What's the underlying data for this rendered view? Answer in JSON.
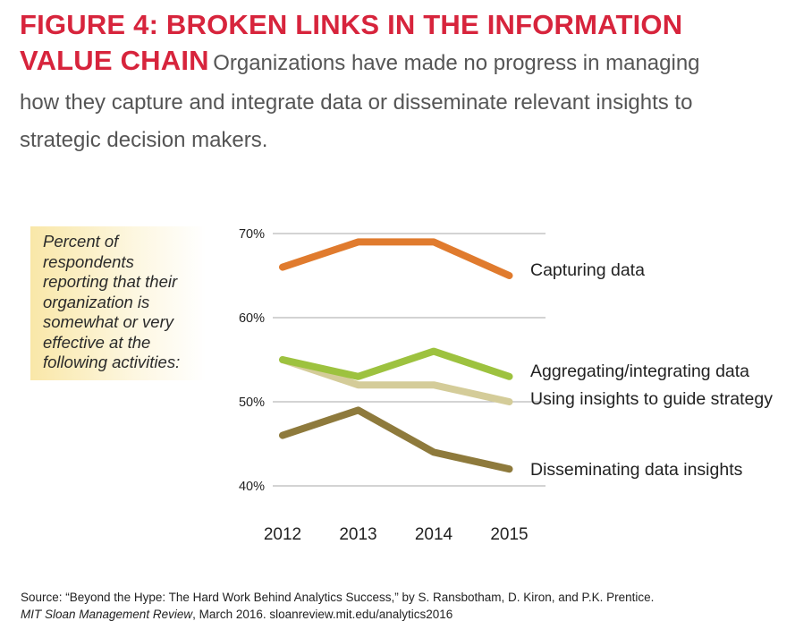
{
  "header": {
    "title_line1": "FIGURE 4: BROKEN LINKS IN THE INFORMATION",
    "title_line2": "VALUE CHAIN",
    "subtitle_line1": "Organizations have made no progress in managing",
    "subtitle_line2": "how they capture and integrate data or disseminate relevant insights to",
    "subtitle_line3": "strategic decision makers."
  },
  "callout": {
    "text": "Percent of respondents reporting that their organization is somewhat or very effective at the following activities:"
  },
  "chart_data": {
    "type": "line",
    "title": "FIGURE 4: BROKEN LINKS IN THE INFORMATION VALUE CHAIN",
    "xlabel": "",
    "ylabel": "",
    "x": [
      "2012",
      "2013",
      "2014",
      "2015"
    ],
    "ylim": [
      40,
      70
    ],
    "yticks": [
      40,
      50,
      60,
      70
    ],
    "ytick_labels": [
      "40%",
      "50%",
      "60%",
      "70%"
    ],
    "grid": true,
    "series": [
      {
        "name": "Capturing data",
        "values": [
          66,
          69,
          69,
          65
        ],
        "color": "#e07b2e"
      },
      {
        "name": "Aggregating/integrating data",
        "values": [
          55,
          53,
          56,
          53
        ],
        "color": "#9dc23f"
      },
      {
        "name": "Using insights to guide strategy",
        "values": [
          55,
          52,
          52,
          50
        ],
        "color": "#d4cc99"
      },
      {
        "name": "Disseminating data insights",
        "values": [
          46,
          49,
          44,
          42
        ],
        "color": "#8e7a3c"
      }
    ]
  },
  "source": {
    "line1": "Source: “Beyond the Hype: The Hard Work Behind Analytics Success,” by S. Ransbotham, D. Kiron, and P.K. Prentice.",
    "journal": "MIT Sloan Management Review",
    "line2_rest": ", March 2016. sloanreview.mit.edu/analytics2016"
  }
}
